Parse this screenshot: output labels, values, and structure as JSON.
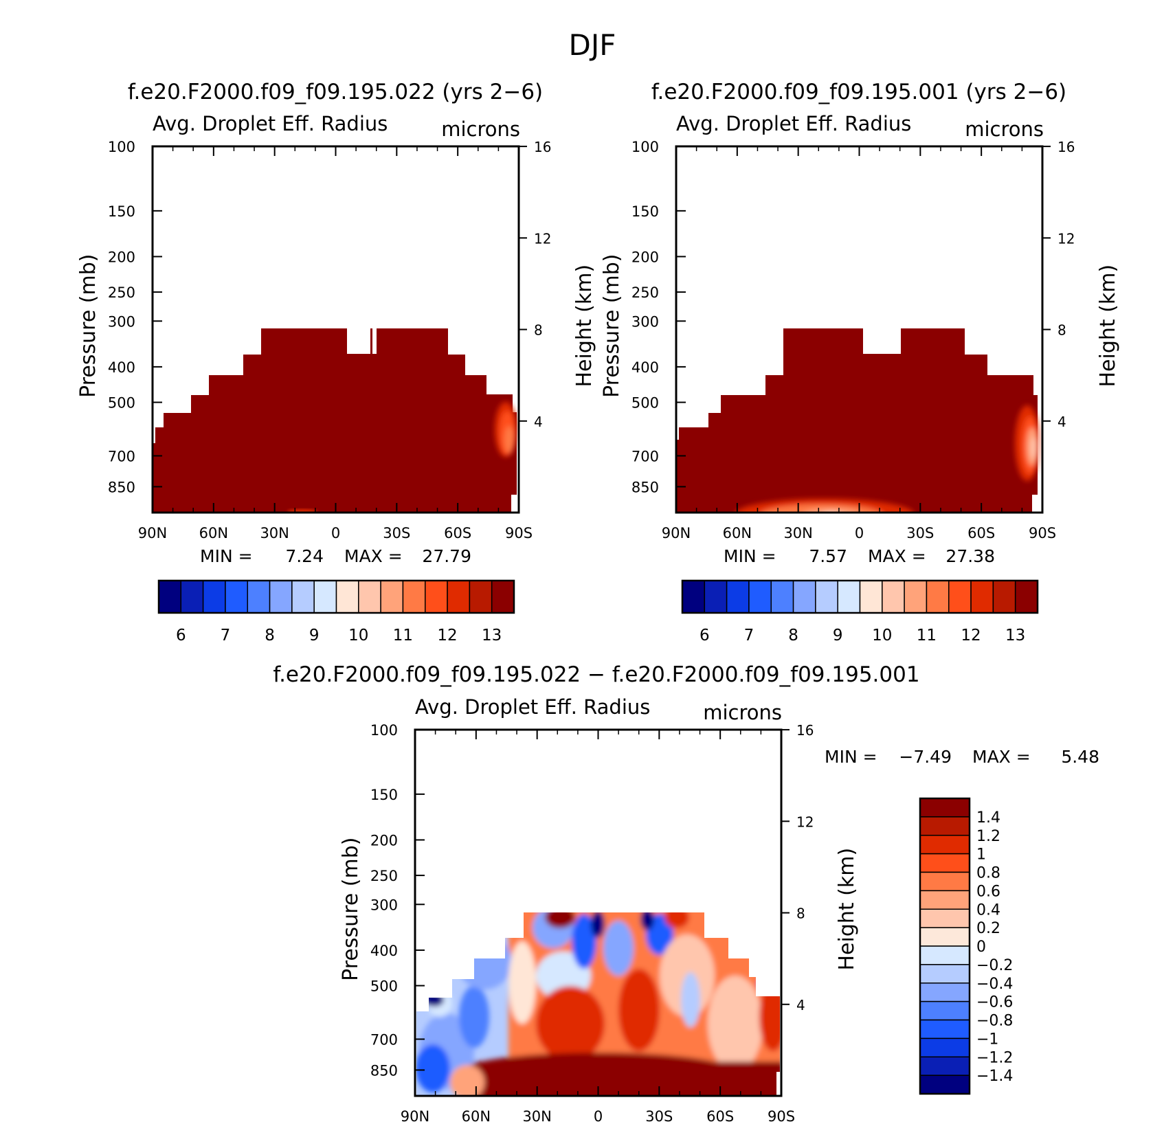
{
  "page": {
    "title": "DJF"
  },
  "colors": {
    "levels13": [
      "#00007f",
      "#0a1fb5",
      "#0c3ce6",
      "#1f5cff",
      "#4d80ff",
      "#85a6ff",
      "#b5ccff",
      "#d6e8ff",
      "#ffe6d6",
      "#ffc6ad",
      "#ffa37a",
      "#ff7a45",
      "#ff4f1a",
      "#e02b00",
      "#b81a00",
      "#8b0000"
    ],
    "diff": [
      "#00007f",
      "#0a1fb5",
      "#0c3ce6",
      "#1f5cff",
      "#4d80ff",
      "#85a6ff",
      "#b5ccff",
      "#d6e8ff",
      "#fde8da",
      "#ffc6ad",
      "#ffa37a",
      "#ff7a45",
      "#ff4f1a",
      "#e02b00",
      "#b81a00",
      "#8b0000"
    ]
  },
  "chart_data": [
    {
      "type": "heatmap",
      "id": "panel1",
      "title": "f.e20.F2000.f09_f09.195.022 (yrs 2−6)",
      "left_label": "Avg. Droplet Eff. Radius",
      "right_label": "microns",
      "ylabel": "Pressure (mb)",
      "y2label": "Height (km)",
      "x_ticks": [
        "90N",
        "60N",
        "30N",
        "0",
        "30S",
        "60S",
        "90S"
      ],
      "y_ticks": [
        "100",
        "150",
        "200",
        "250",
        "300",
        "400",
        "500",
        "700",
        "850"
      ],
      "y2_ticks": [
        "16",
        "12",
        "8",
        "4"
      ],
      "min_label": "MIN =",
      "min_value": "7.24",
      "max_label": "MAX =",
      "max_value": "27.79",
      "colorbar_labels": [
        "6",
        "7",
        "8",
        "9",
        "10",
        "11",
        "12",
        "13"
      ],
      "colorbar_levels": [
        5.5,
        6,
        6.5,
        7,
        7.5,
        8,
        8.5,
        9,
        9.5,
        10,
        10.5,
        11,
        11.5,
        12,
        12.5,
        13,
        13.5
      ]
    },
    {
      "type": "heatmap",
      "id": "panel2",
      "title": "f.e20.F2000.f09_f09.195.001 (yrs 2−6)",
      "left_label": "Avg. Droplet Eff. Radius",
      "right_label": "microns",
      "ylabel": "Pressure (mb)",
      "y2label": "Height (km)",
      "x_ticks": [
        "90N",
        "60N",
        "30N",
        "0",
        "30S",
        "60S",
        "90S"
      ],
      "y_ticks": [
        "100",
        "150",
        "200",
        "250",
        "300",
        "400",
        "500",
        "700",
        "850"
      ],
      "y2_ticks": [
        "16",
        "12",
        "8",
        "4"
      ],
      "min_label": "MIN =",
      "min_value": "7.57",
      "max_label": "MAX =",
      "max_value": "27.38",
      "colorbar_labels": [
        "6",
        "7",
        "8",
        "9",
        "10",
        "11",
        "12",
        "13"
      ],
      "colorbar_levels": [
        5.5,
        6,
        6.5,
        7,
        7.5,
        8,
        8.5,
        9,
        9.5,
        10,
        10.5,
        11,
        11.5,
        12,
        12.5,
        13,
        13.5
      ]
    },
    {
      "type": "heatmap",
      "id": "panel3",
      "title": "f.e20.F2000.f09_f09.195.022 − f.e20.F2000.f09_f09.195.001",
      "left_label": "Avg. Droplet Eff. Radius",
      "right_label": "microns",
      "ylabel": "Pressure (mb)",
      "y2label": "Height (km)",
      "x_ticks": [
        "90N",
        "60N",
        "30N",
        "0",
        "30S",
        "60S",
        "90S"
      ],
      "y_ticks": [
        "100",
        "150",
        "200",
        "250",
        "300",
        "400",
        "500",
        "700",
        "850"
      ],
      "y2_ticks": [
        "16",
        "12",
        "8",
        "4"
      ],
      "min_label": "MIN =",
      "min_value": "−7.49",
      "max_label": "MAX =",
      "max_value": "5.48",
      "colorbar_labels": [
        "1.4",
        "1.2",
        "1",
        "0.8",
        "0.6",
        "0.4",
        "0.2",
        "0",
        "−0.2",
        "−0.4",
        "−0.6",
        "−0.8",
        "−1",
        "−1.2",
        "−1.4"
      ]
    }
  ]
}
